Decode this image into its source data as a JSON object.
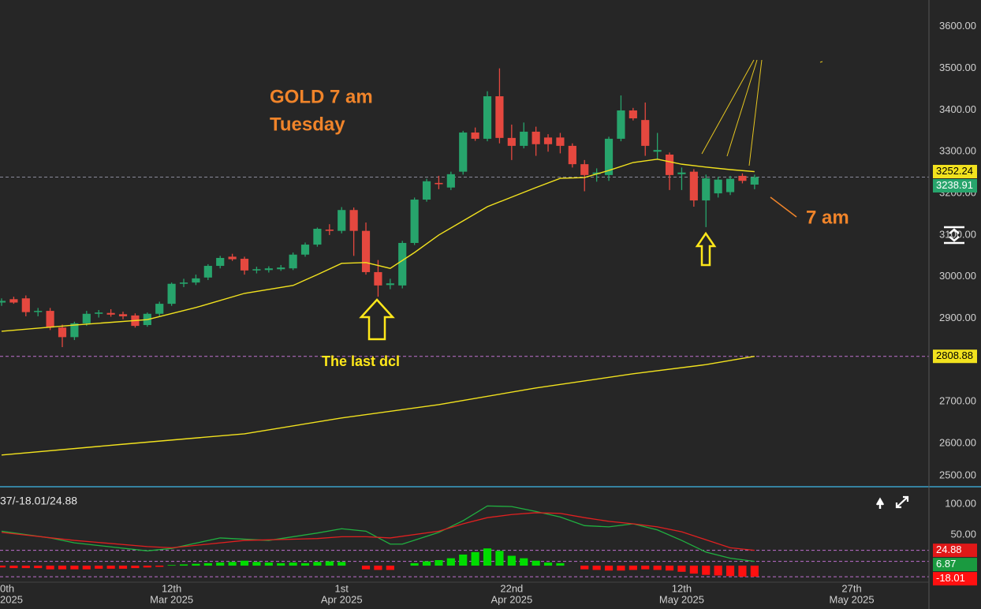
{
  "chart_data": [
    {
      "type": "candlestick",
      "xlim": [
        -0.13,
        76.36
      ],
      "ylim": [
        2496,
        3664
      ],
      "yticks": [
        {
          "value": 2500,
          "label": "2500.00"
        },
        {
          "value": 2600,
          "label": "2600.00"
        },
        {
          "value": 2700,
          "label": "2700.00"
        },
        {
          "value": 2800,
          "label": "2800.00"
        },
        {
          "value": 2900,
          "label": "2900.00"
        },
        {
          "value": 3000,
          "label": "3000.00"
        },
        {
          "value": 3100,
          "label": "3100.00"
        },
        {
          "value": 3200,
          "label": "3200.00"
        },
        {
          "value": 3300,
          "label": "3300.00"
        },
        {
          "value": 3400,
          "label": "3400.00"
        },
        {
          "value": 3500,
          "label": "3500.00"
        },
        {
          "value": 3600,
          "label": "3600.00"
        }
      ],
      "xticks": [
        {
          "value": 0,
          "label": "0th"
        },
        {
          "value": 14,
          "label": "12th"
        },
        {
          "value": 28,
          "label": "1st"
        },
        {
          "value": 42,
          "label": "22nd"
        },
        {
          "value": 56,
          "label": "12th"
        },
        {
          "value": 70,
          "label": "27th"
        }
      ],
      "xtick_months": [
        "2025",
        "Mar 2025",
        "Apr 2025",
        "Apr 2025",
        "May 2025",
        "May 2025"
      ],
      "grid": true,
      "up_color": "#27a46c",
      "down_color": "#e5483f",
      "candles": {
        "x": [
          0,
          1,
          2,
          3,
          4,
          5,
          6,
          7,
          8,
          9,
          10,
          11,
          12,
          13,
          14,
          15,
          16,
          17,
          18,
          19,
          20,
          21,
          22,
          23,
          24,
          25,
          26,
          27,
          28,
          29,
          30,
          31,
          32,
          33,
          34,
          35,
          36,
          37,
          38,
          39,
          40,
          41,
          42,
          43,
          44,
          45,
          46,
          47,
          48,
          49,
          50,
          51,
          52,
          53,
          54,
          55,
          56,
          57,
          58,
          59,
          60,
          61,
          62
        ],
        "open": [
          2938,
          2946,
          2948,
          2916,
          2918,
          2878,
          2855,
          2888,
          2911,
          2913,
          2910,
          2907,
          2884,
          2911,
          2935,
          2983,
          2986,
          2998,
          3026,
          3048,
          3043,
          3015,
          3016,
          3018,
          3020,
          3053,
          3077,
          3113,
          3110,
          3160,
          3110,
          3011,
          2980,
          2979,
          3081,
          3185,
          3225,
          3214,
          3252,
          3346,
          3331,
          3433,
          3333,
          3314,
          3348,
          3334,
          3334,
          3314,
          3270,
          3246,
          3244,
          3331,
          3399,
          3376,
          3300,
          3293,
          3246,
          3252,
          3183,
          3200,
          3203,
          3242,
          3221
        ],
        "high": [
          2948,
          2952,
          2955,
          2925,
          2925,
          2885,
          2892,
          2918,
          2920,
          2922,
          2916,
          2912,
          2914,
          2940,
          2986,
          2995,
          3005,
          3030,
          3050,
          3055,
          3048,
          3024,
          3025,
          3028,
          3058,
          3082,
          3118,
          3126,
          3167,
          3166,
          3130,
          3040,
          2995,
          3086,
          3190,
          3235,
          3242,
          3252,
          3350,
          3358,
          3445,
          3500,
          3365,
          3370,
          3360,
          3342,
          3345,
          3320,
          3280,
          3260,
          3336,
          3435,
          3405,
          3418,
          3345,
          3298,
          3262,
          3258,
          3245,
          3240,
          3242,
          3248,
          3245
        ],
        "low": [
          2930,
          2935,
          2905,
          2905,
          2872,
          2831,
          2848,
          2882,
          2902,
          2904,
          2898,
          2878,
          2880,
          2906,
          2930,
          2975,
          2980,
          2992,
          3020,
          3038,
          3005,
          3008,
          3010,
          3014,
          3016,
          3048,
          3072,
          3100,
          3104,
          3050,
          3005,
          2952,
          2970,
          2972,
          3076,
          3180,
          3210,
          3208,
          3245,
          3326,
          3325,
          3320,
          3280,
          3308,
          3290,
          3300,
          3296,
          3262,
          3205,
          3228,
          3230,
          3325,
          3375,
          3290,
          3282,
          3208,
          3208,
          3168,
          3119,
          3190,
          3196,
          3224,
          3210
        ],
        "close": [
          2942,
          2938,
          2915,
          2918,
          2878,
          2855,
          2888,
          2911,
          2914,
          2909,
          2905,
          2882,
          2911,
          2935,
          2983,
          2986,
          2996,
          3026,
          3045,
          3042,
          3015,
          3018,
          3020,
          3022,
          3053,
          3077,
          3115,
          3110,
          3160,
          3110,
          3011,
          2979,
          2984,
          3081,
          3185,
          3229,
          3222,
          3246,
          3346,
          3331,
          3433,
          3333,
          3314,
          3348,
          3318,
          3318,
          3314,
          3270,
          3244,
          3250,
          3331,
          3399,
          3380,
          3314,
          3304,
          3244,
          3250,
          3183,
          3236,
          3233,
          3235,
          3230,
          3238.91
        ]
      },
      "series": [
        {
          "color": "#f2e21e",
          "x": [
            0,
            6,
            12,
            16,
            20,
            24,
            26,
            28,
            30,
            32,
            34,
            36,
            38,
            40,
            42,
            44,
            46,
            48,
            50,
            52,
            54,
            56,
            58,
            60,
            62
          ],
          "values": [
            2869,
            2884,
            2897,
            2926,
            2960,
            2979,
            3005,
            3032,
            3034,
            3020,
            3058,
            3100,
            3134,
            3168,
            3191,
            3214,
            3236,
            3238,
            3255,
            3274,
            3282,
            3270,
            3263,
            3257,
            3252.24
          ]
        },
        {
          "color": "#f2e21e",
          "x": [
            0,
            10,
            20,
            28,
            36,
            44,
            52,
            58,
            62
          ],
          "values": [
            2572,
            2598,
            2623,
            2661,
            2693,
            2733,
            2767,
            2789,
            2808.88
          ]
        }
      ],
      "annotations": [
        "GOLD 7 am",
        "Tuesday",
        "7 am",
        "The last dcl"
      ]
    },
    {
      "type": "dmi",
      "title": "37/-18.01/24.88",
      "ylim": [
        -26.9,
        124.4
      ],
      "yticks": [
        {
          "value": 50,
          "label": "50.00"
        },
        {
          "value": 100,
          "label": "100.00"
        }
      ],
      "series": [
        {
          "color": "#20b040",
          "x": [
            0,
            4,
            6,
            12,
            14,
            18,
            22,
            26,
            28,
            30,
            32,
            33,
            36,
            38,
            40,
            42,
            44,
            46,
            48,
            50,
            52,
            54,
            56,
            58,
            60,
            62
          ],
          "values": [
            56,
            45,
            37,
            24,
            28,
            45,
            41,
            53,
            60,
            56,
            35,
            35,
            54,
            73,
            97,
            96,
            88,
            79,
            65,
            63,
            68,
            58,
            41,
            22,
            12,
            6.87
          ]
        },
        {
          "color": "#e02020",
          "x": [
            0,
            6,
            12,
            14,
            20,
            26,
            28,
            30,
            32,
            36,
            38,
            40,
            42,
            44,
            46,
            48,
            50,
            52,
            54,
            56,
            58,
            60,
            62
          ],
          "values": [
            54,
            41,
            31,
            29,
            41,
            44,
            47,
            47,
            45,
            56,
            68,
            78,
            83,
            86,
            85,
            78,
            72,
            68,
            63,
            55,
            42,
            29,
            24.88
          ]
        }
      ],
      "histogram": {
        "up_color": "#00dd00",
        "down_color": "#ff1010",
        "values": [
          -3,
          -4,
          -4,
          -4,
          -6,
          -6,
          -6,
          -6,
          -5,
          -5,
          -5,
          -4,
          -3,
          -2,
          1,
          2,
          3,
          4,
          5,
          6,
          8,
          6,
          5,
          4,
          5,
          4,
          6,
          7,
          6,
          0,
          -6,
          -7,
          -7,
          0,
          4,
          7,
          9,
          12,
          18,
          22,
          28,
          24,
          16,
          12,
          8,
          5,
          4,
          0,
          -6,
          -7,
          -8,
          -8,
          -7,
          -6,
          -7,
          -8,
          -10,
          -13,
          -15,
          -16,
          -17,
          -18,
          -18.01
        ]
      }
    }
  ]
}
